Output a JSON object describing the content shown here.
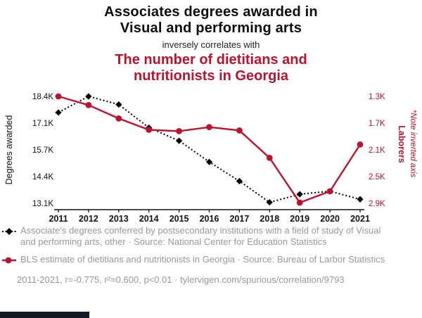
{
  "header": {
    "title_line1": "Associates degrees awarded in",
    "title_line2": "Visual and performing arts",
    "connector": "inversely correlates with",
    "subtitle_line1": "The number of dietitians and",
    "subtitle_line2": "nutritionists in Georgia"
  },
  "colors": {
    "accent": "#bb122e",
    "series_black": "#000000",
    "legend_gray": "#96999b"
  },
  "chart_data": {
    "type": "line",
    "x": [
      "2011",
      "2012",
      "2013",
      "2014",
      "2015",
      "2016",
      "2017",
      "2018",
      "2019",
      "2020",
      "2021"
    ],
    "series": [
      {
        "name": "degrees-awarded",
        "axis": "left",
        "color": "#000000",
        "style": "dotted",
        "marker": "diamond",
        "values": [
          17600,
          18400,
          18000,
          16850,
          16200,
          15150,
          14200,
          13150,
          13550,
          13700,
          13300
        ]
      },
      {
        "name": "laborers-georgia",
        "axis": "right",
        "color": "#bb122e",
        "style": "solid",
        "marker": "circle",
        "values": [
          1300,
          1430,
          1630,
          1800,
          1820,
          1760,
          1810,
          2220,
          2890,
          2720,
          2020
        ]
      }
    ],
    "left_axis": {
      "label": "Degrees awarded",
      "ticks": [
        "18.4K",
        "17.1K",
        "15.7K",
        "14.4K",
        "13.1K"
      ],
      "tick_values": [
        18400,
        17100,
        15700,
        14400,
        13100
      ]
    },
    "right_axis": {
      "label": "Laborers",
      "note": "*Note inverted axis",
      "inverted": true,
      "ticks": [
        "1.3K",
        "1.7K",
        "2.1K",
        "2.5K",
        "2.9K"
      ],
      "tick_values": [
        1300,
        1700,
        2100,
        2500,
        2900
      ]
    },
    "grid": false,
    "legend_position": "bottom"
  },
  "legend": [
    {
      "text": "Associate's degrees conferred by postsecondary institutions with a field of study of Visual and performing arts, other · Source: National Center for Education Statistics"
    },
    {
      "text": "BLS estimate of dietitians and nutritionists in Georgia · Source: Bureau of Larbor Statistics"
    }
  ],
  "footer": {
    "caption": "2011-2021, r=-0.775, r²=0.600, p<0.01 · tylervigen.com/spurious/correlation/9793"
  }
}
